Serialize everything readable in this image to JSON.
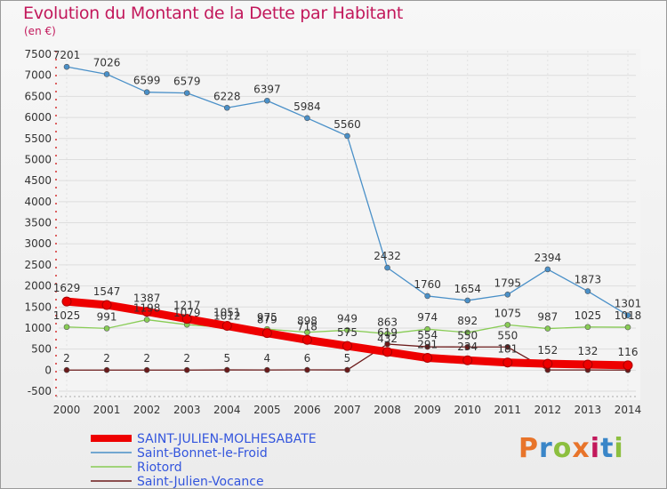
{
  "title": "Evolution du Montant de la Dette par Habitant",
  "subtitle": "(en €)",
  "brand": {
    "text": "Proxiti",
    "colors": [
      "#e8742a",
      "#3a86c8",
      "#8cbf3f",
      "#e8742a",
      "#c2185b",
      "#3a86c8",
      "#8cbf3f"
    ]
  },
  "chart_data": {
    "type": "line",
    "x": [
      "2000",
      "2001",
      "2002",
      "2003",
      "2004",
      "2005",
      "2006",
      "2007",
      "2008",
      "2009",
      "2010",
      "2011",
      "2012",
      "2013",
      "2014"
    ],
    "ylim": [
      -500,
      7500
    ],
    "yticks": [
      -500,
      0,
      500,
      1000,
      1500,
      2000,
      2500,
      3000,
      3500,
      4000,
      4500,
      5000,
      5500,
      6000,
      6500,
      7000,
      7500
    ],
    "series": [
      {
        "name": "Saint-Bonnet-le-Froid",
        "color": "#4a90c8",
        "values": [
          7201,
          7026,
          6599,
          6579,
          6228,
          6397,
          5984,
          5560,
          2432,
          1760,
          1654,
          1795,
          2394,
          1873,
          1301
        ],
        "labels": [
          "7201",
          "7026",
          "6599",
          "6579",
          "6228",
          "6397",
          "5984",
          "5560",
          "2432",
          "1760",
          "1654",
          "1795",
          "2394",
          "1873",
          "1301"
        ]
      },
      {
        "name": "Riotord",
        "color": "#88cc55",
        "values": [
          1025,
          991,
          1198,
          1079,
          1012,
          975,
          898,
          949,
          863,
          974,
          892,
          1075,
          987,
          1025,
          1018
        ],
        "labels": [
          "1025",
          "991",
          "1198",
          "1079",
          "1012",
          "975",
          "898",
          "949",
          "863",
          "974",
          "892",
          "1075",
          "987",
          "1025",
          "1018"
        ]
      },
      {
        "name": "Saint-Julien-Vocance",
        "color": "#6b1a1a",
        "values": [
          2,
          2,
          2,
          2,
          5,
          4,
          6,
          5,
          619,
          554,
          550,
          550,
          4,
          4,
          1
        ],
        "labels": [
          "2",
          "2",
          "2",
          "2",
          "5",
          "4",
          "6",
          "5",
          "619",
          "554",
          "550",
          "550",
          "",
          "",
          ""
        ]
      },
      {
        "name": "SAINT-JULIEN-MOLHESABATE",
        "color": "#ee0000",
        "values": [
          1629,
          1547,
          1387,
          1217,
          1051,
          879,
          718,
          575,
          432,
          291,
          234,
          181,
          152,
          132,
          116
        ],
        "labels": [
          "1629",
          "1547",
          "1387",
          "1217",
          "1051",
          "879",
          "718",
          "575",
          "432",
          "291",
          "234",
          "181",
          "152",
          "132",
          "116"
        ]
      }
    ]
  }
}
